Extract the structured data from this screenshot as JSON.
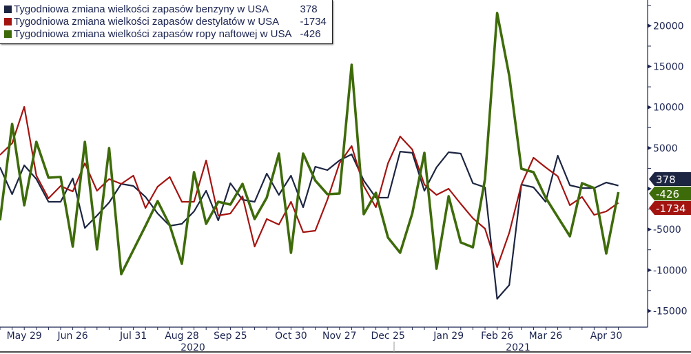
{
  "chart_data": {
    "type": "line",
    "title": "",
    "xlabel": "",
    "ylabel": "",
    "ylim": [
      -17000,
      24000
    ],
    "y_ticks": [
      20000,
      15000,
      10000,
      5000,
      0,
      -5000,
      -10000,
      -15000
    ],
    "y_tick_labels": [
      "20000",
      "15000",
      "10000",
      "5000",
      "",
      "-5000",
      "-10000",
      "-15000"
    ],
    "y_axis_side": "right",
    "legend_position": "top-left",
    "grid": false,
    "x": [
      "2020-05-15",
      "2020-05-22",
      "2020-05-29",
      "2020-06-05",
      "2020-06-12",
      "2020-06-19",
      "2020-06-26",
      "2020-07-03",
      "2020-07-10",
      "2020-07-17",
      "2020-07-24",
      "2020-07-31",
      "2020-08-07",
      "2020-08-14",
      "2020-08-21",
      "2020-08-28",
      "2020-09-04",
      "2020-09-11",
      "2020-09-18",
      "2020-09-25",
      "2020-10-02",
      "2020-10-09",
      "2020-10-16",
      "2020-10-23",
      "2020-10-30",
      "2020-11-06",
      "2020-11-13",
      "2020-11-20",
      "2020-11-27",
      "2020-12-04",
      "2020-12-11",
      "2020-12-18",
      "2020-12-25",
      "2021-01-01",
      "2021-01-08",
      "2021-01-15",
      "2021-01-22",
      "2021-01-29",
      "2021-02-05",
      "2021-02-12",
      "2021-02-19",
      "2021-02-26",
      "2021-03-05",
      "2021-03-12",
      "2021-03-19",
      "2021-03-26",
      "2021-04-02",
      "2021-04-09",
      "2021-04-16",
      "2021-04-23",
      "2021-04-30",
      "2021-05-07"
    ],
    "x_tick_labels": [
      {
        "index": 2,
        "label": "May 29"
      },
      {
        "index": 6,
        "label": "Jun 26"
      },
      {
        "index": 11,
        "label": "Jul 31"
      },
      {
        "index": 15,
        "label": "Aug 28"
      },
      {
        "index": 19,
        "label": "Sep 25"
      },
      {
        "index": 24,
        "label": "Oct 30"
      },
      {
        "index": 28,
        "label": "Nov 27"
      },
      {
        "index": 32,
        "label": "Dec 25"
      },
      {
        "index": 37,
        "label": "Jan 29"
      },
      {
        "index": 41,
        "label": "Feb 26"
      },
      {
        "index": 45,
        "label": "Mar 26"
      },
      {
        "index": 50,
        "label": "Apr 30"
      }
    ],
    "years": [
      {
        "label": "2020",
        "from": 0,
        "to": 32
      },
      {
        "label": "2021",
        "from": 33,
        "to": 51
      }
    ],
    "series": [
      {
        "name": "Tygodniowa zmiana wielkości zapasów benzyny w USA",
        "last_value": "378",
        "color": "#1c2541",
        "values": [
          2620,
          -680,
          2870,
          1180,
          -1610,
          -1610,
          1270,
          -4820,
          -3300,
          -1690,
          590,
          340,
          -1010,
          -3040,
          -4560,
          -4310,
          -2790,
          -250,
          -3890,
          680,
          -1350,
          -1610,
          1860,
          -760,
          1610,
          -2280,
          2700,
          2280,
          3470,
          4230,
          1010,
          -1100,
          -1100,
          4560,
          4400,
          -250,
          2620,
          4480,
          4310,
          680,
          170,
          -13520,
          -11830,
          510,
          170,
          -1610,
          4060,
          420,
          80,
          80,
          760,
          378
        ]
      },
      {
        "name": "Tygodniowa zmiana wielkości zapasów destylatów w USA",
        "last_value": "-1734",
        "color": "#a31410",
        "values": [
          4140,
          5580,
          10060,
          1610,
          -1180,
          340,
          -340,
          3130,
          -250,
          1180,
          590,
          1610,
          -2370,
          250,
          1440,
          -1610,
          -1610,
          3470,
          -3300,
          -3040,
          -930,
          -7100,
          -3720,
          -4400,
          -1610,
          -5330,
          -5160,
          -1350,
          3130,
          5240,
          340,
          -2280,
          3130,
          6420,
          4820,
          510,
          -760,
          0,
          -1860,
          -3630,
          -4900,
          -9640,
          -5410,
          510,
          3800,
          2620,
          1520,
          -2030,
          -1010,
          -3210,
          -2790,
          -1734
        ]
      },
      {
        "name": "Tygodniowa zmiana wielkości zapasów ropy naftowej w USA",
        "last_value": "-426",
        "color": "#3e6b0a",
        "values": [
          -3890,
          7950,
          -2030,
          5750,
          1350,
          1440,
          -7100,
          5750,
          -7440,
          4990,
          -10480,
          -7520,
          -4560,
          -1520,
          -4480,
          -9210,
          2030,
          -4310,
          -1610,
          -1940,
          590,
          -3720,
          -1100,
          4310,
          -7860,
          4310,
          1010,
          -680,
          -590,
          15210,
          -3130,
          -510,
          -6000,
          -7860,
          -3040,
          4400,
          -9810,
          -930,
          -6590,
          -7190,
          1180,
          21560,
          13860,
          2450,
          2030,
          -1100,
          -3470,
          -5830,
          680,
          80,
          -7950,
          -426
        ]
      }
    ]
  }
}
